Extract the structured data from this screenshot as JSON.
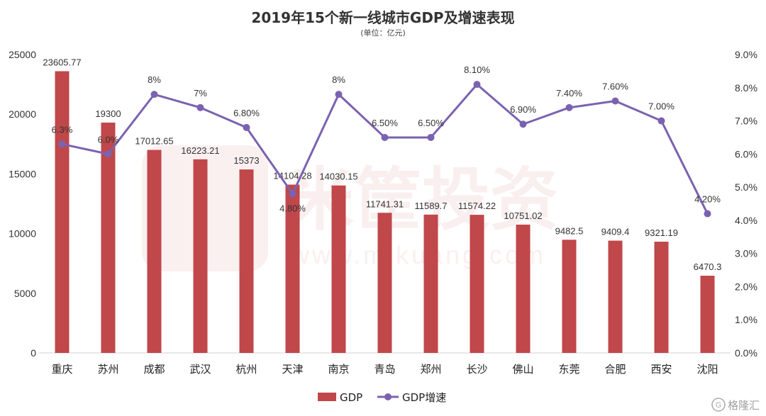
{
  "chart_data": {
    "type": "bar",
    "title": "2019年15个新一线城市GDP及增速表现",
    "subtitle": "(单位：亿元)",
    "categories": [
      "重庆",
      "苏州",
      "成都",
      "武汉",
      "杭州",
      "天津",
      "南京",
      "青岛",
      "郑州",
      "长沙",
      "佛山",
      "东莞",
      "合肥",
      "西安",
      "沈阳"
    ],
    "series": [
      {
        "name": "GDP",
        "type": "bar",
        "axis": "left",
        "color": "#c0474a",
        "values": [
          23605.77,
          19300,
          17012.65,
          16223.21,
          15373,
          14104.28,
          14030.15,
          11741.31,
          11589.7,
          11574.22,
          10751.02,
          9482.5,
          9409.4,
          9321.19,
          6470.3
        ],
        "labels": [
          "23605.77",
          "19300",
          "17012.65",
          "16223.21",
          "15373",
          "14104.28",
          "14030.15",
          "11741.31",
          "11589.7",
          "11574.22",
          "10751.02",
          "9482.5",
          "9409.4",
          "9321.19",
          "6470.3"
        ]
      },
      {
        "name": "GDP增速",
        "type": "line",
        "axis": "right",
        "color": "#7b62b0",
        "values": [
          6.3,
          6.0,
          7.8,
          7.4,
          6.8,
          4.8,
          7.8,
          6.5,
          6.5,
          8.1,
          6.9,
          7.4,
          7.6,
          7.0,
          4.2
        ],
        "labels": [
          "6.3%",
          "6.0%",
          "8%",
          "7%",
          "6.80%",
          "4.80%",
          "8%",
          "6.50%",
          "6.50%",
          "8.10%",
          "6.90%",
          "7.40%",
          "7.60%",
          "7.00%",
          "4.20%"
        ]
      }
    ],
    "y_left": {
      "min": 0,
      "max": 25000,
      "ticks": [
        "0",
        "5000",
        "10000",
        "15000",
        "20000",
        "25000"
      ]
    },
    "y_right": {
      "min": 0,
      "max": 9,
      "ticks": [
        "0.0%",
        "1.0%",
        "2.0%",
        "3.0%",
        "4.0%",
        "5.0%",
        "6.0%",
        "7.0%",
        "8.0%",
        "9.0%"
      ]
    },
    "grid": false,
    "legend_position": "bottom"
  },
  "legend": {
    "bar_label": "GDP",
    "line_label": "GDP增速"
  },
  "watermark": {
    "logo_text": "格隆汇",
    "logo_mark": "G",
    "main_text": "米筐投资",
    "url_text": "www.mikuang.com"
  },
  "colors": {
    "bar": "#c0474a",
    "line": "#7b62b0",
    "text": "#333333"
  }
}
